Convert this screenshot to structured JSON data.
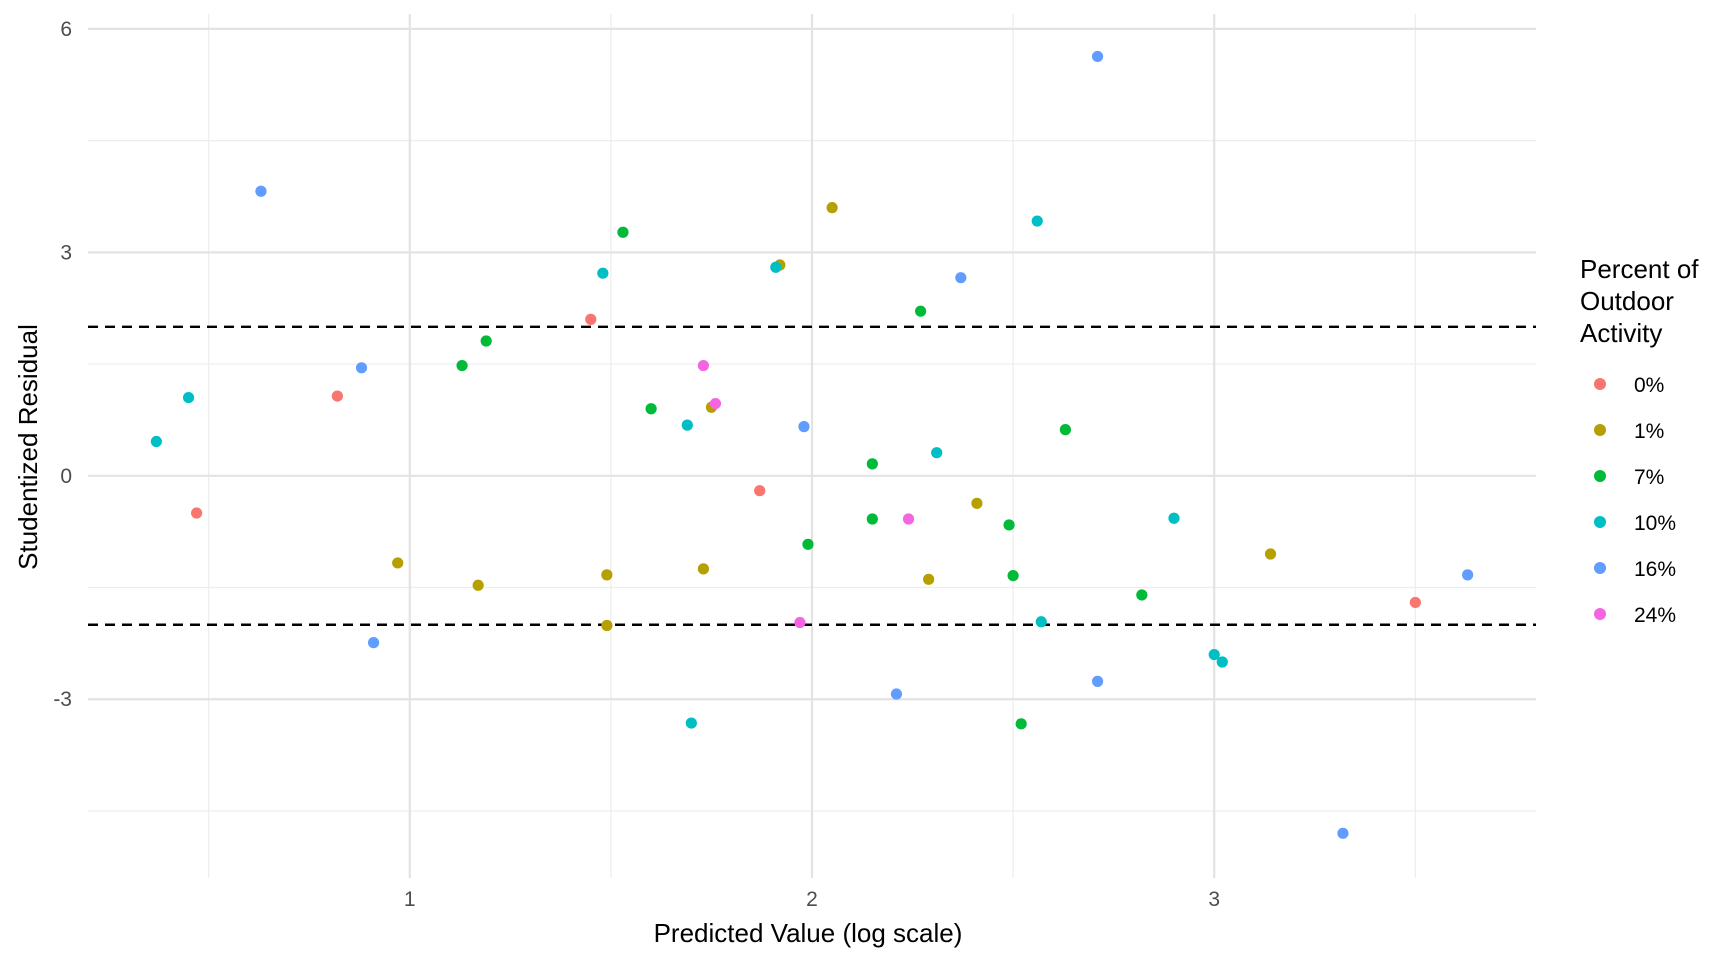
{
  "chart_data": {
    "type": "scatter",
    "title": "",
    "xlabel": "Predicted Value (log scale)",
    "ylabel": "Studentized Residual",
    "xlim": [
      0.2,
      3.8
    ],
    "ylim": [
      -5.4,
      6.2
    ],
    "x_ticks": [
      1,
      2,
      3
    ],
    "x_tick_labels": [
      "1",
      "2",
      "3"
    ],
    "y_ticks": [
      6,
      3,
      0,
      -3
    ],
    "y_tick_labels": [
      "6",
      "3",
      "0",
      "-3"
    ],
    "x_minor_gridlines": [
      0.5,
      1.5,
      2.5,
      3.5
    ],
    "y_minor_gridlines": [
      4.5,
      1.5,
      -1.5,
      -4.5
    ],
    "grid": true,
    "reference_lines": [
      2,
      -2
    ],
    "legend": {
      "title_lines": [
        "Percent of",
        "Outdoor",
        "Activity"
      ],
      "placement": "right"
    },
    "series": [
      {
        "name": "0%",
        "color": "#F8766D",
        "points": [
          [
            0.47,
            -0.5
          ],
          [
            0.82,
            1.07
          ],
          [
            1.45,
            2.1
          ],
          [
            1.87,
            -0.2
          ],
          [
            3.5,
            -1.7
          ]
        ]
      },
      {
        "name": "1%",
        "color": "#B79F00",
        "points": [
          [
            0.97,
            -1.17
          ],
          [
            1.17,
            -1.47
          ],
          [
            1.49,
            -1.33
          ],
          [
            1.49,
            -2.01
          ],
          [
            1.73,
            -1.25
          ],
          [
            1.75,
            0.92
          ],
          [
            1.92,
            2.83
          ],
          [
            2.05,
            3.6
          ],
          [
            2.29,
            -1.39
          ],
          [
            2.41,
            -0.37
          ],
          [
            3.14,
            -1.05
          ]
        ]
      },
      {
        "name": "7%",
        "color": "#00BA38",
        "points": [
          [
            1.13,
            1.48
          ],
          [
            1.19,
            1.81
          ],
          [
            1.53,
            3.27
          ],
          [
            1.6,
            0.9
          ],
          [
            1.99,
            -0.92
          ],
          [
            2.15,
            0.16
          ],
          [
            2.15,
            -0.58
          ],
          [
            2.27,
            2.21
          ],
          [
            2.49,
            -0.66
          ],
          [
            2.5,
            -1.34
          ],
          [
            2.52,
            -3.33
          ],
          [
            2.63,
            0.62
          ],
          [
            2.82,
            -1.6
          ]
        ]
      },
      {
        "name": "10%",
        "color": "#00BFC4",
        "points": [
          [
            0.37,
            0.46
          ],
          [
            0.45,
            1.05
          ],
          [
            1.48,
            2.72
          ],
          [
            1.69,
            0.68
          ],
          [
            1.7,
            -3.32
          ],
          [
            1.91,
            2.8
          ],
          [
            2.31,
            0.31
          ],
          [
            2.56,
            3.42
          ],
          [
            2.57,
            -1.96
          ],
          [
            2.9,
            -0.57
          ],
          [
            3.0,
            -2.4
          ],
          [
            3.02,
            -2.5
          ]
        ]
      },
      {
        "name": "16%",
        "color": "#619CFF",
        "points": [
          [
            0.63,
            3.82
          ],
          [
            0.88,
            1.45
          ],
          [
            0.91,
            -2.24
          ],
          [
            1.98,
            0.66
          ],
          [
            2.21,
            -2.93
          ],
          [
            2.37,
            2.66
          ],
          [
            2.71,
            5.63
          ],
          [
            2.71,
            -2.76
          ],
          [
            3.32,
            -4.8
          ],
          [
            3.63,
            -1.33
          ]
        ]
      },
      {
        "name": "24%",
        "color": "#F564E3",
        "points": [
          [
            1.73,
            1.48
          ],
          [
            1.76,
            0.97
          ],
          [
            1.97,
            -1.97
          ],
          [
            2.24,
            -0.58
          ]
        ]
      }
    ]
  }
}
